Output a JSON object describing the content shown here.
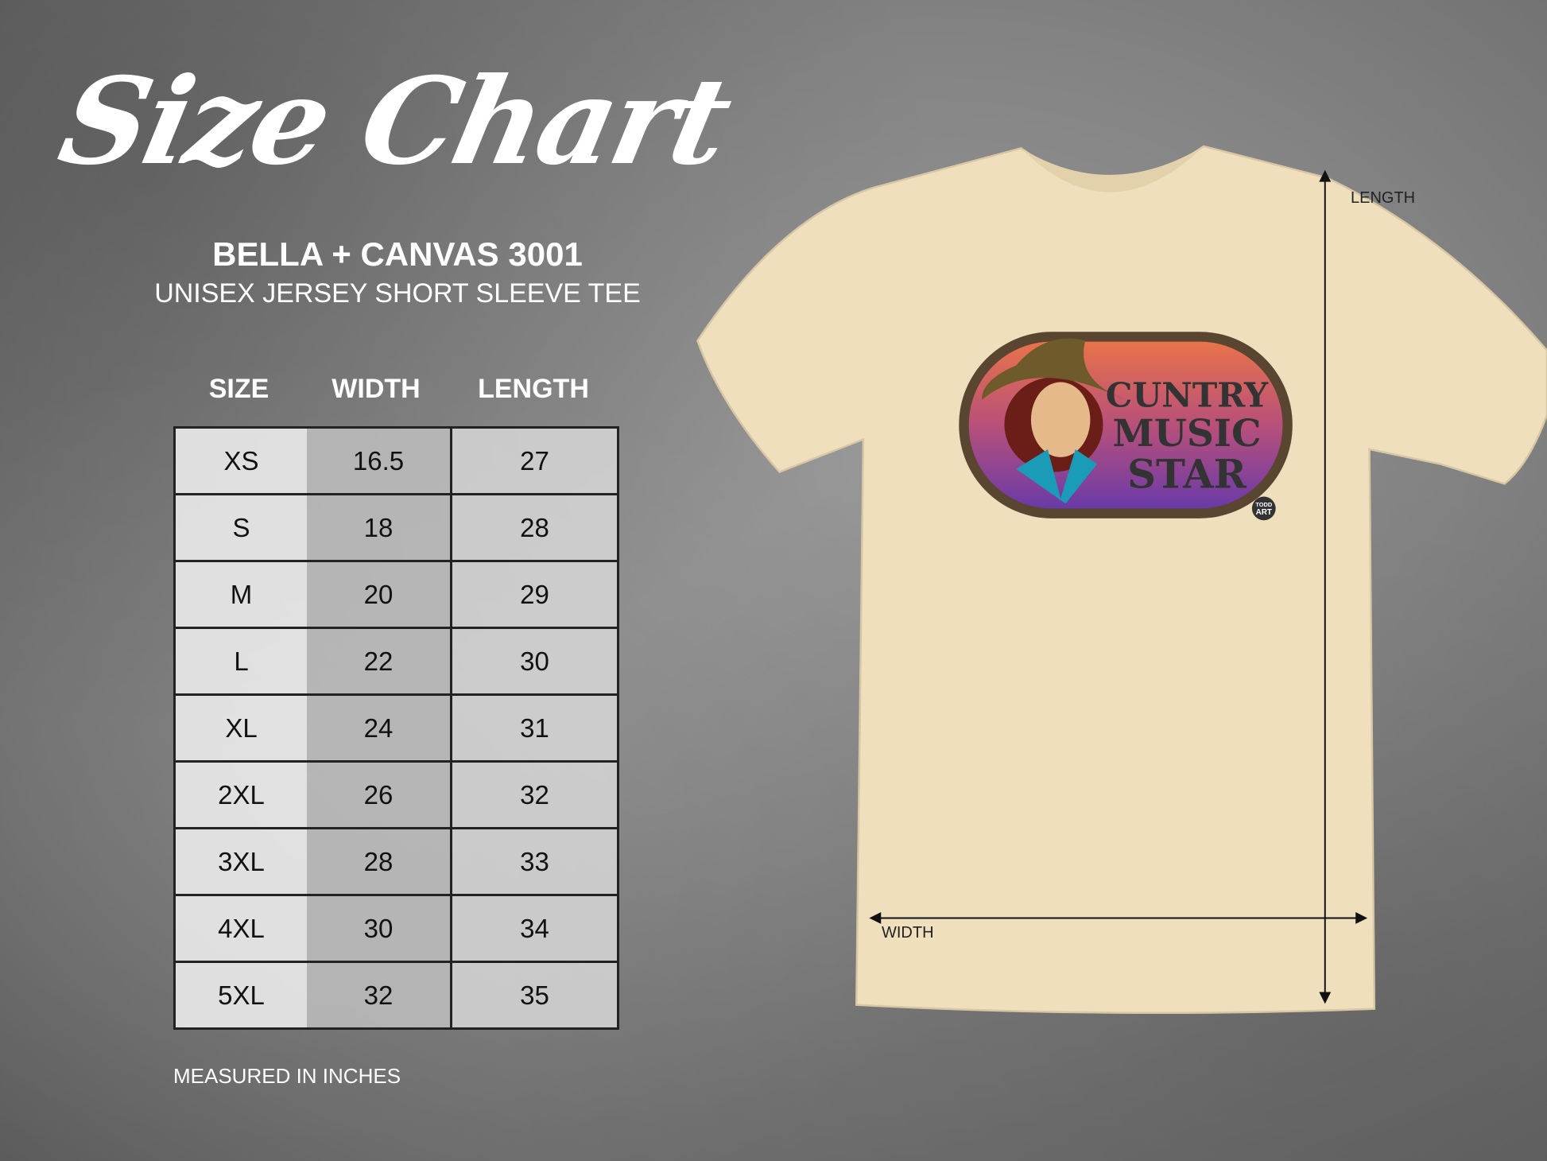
{
  "title": "Size Chart",
  "brand": "BELLA + CANVAS 3001",
  "subtitle": "UNISEX JERSEY SHORT SLEEVE TEE",
  "table": {
    "headers": [
      "SIZE",
      "WIDTH",
      "LENGTH"
    ],
    "rows": [
      [
        "XS",
        "16.5",
        "27"
      ],
      [
        "S",
        "18",
        "28"
      ],
      [
        "M",
        "20",
        "29"
      ],
      [
        "L",
        "22",
        "30"
      ],
      [
        "XL",
        "24",
        "31"
      ],
      [
        "2XL",
        "26",
        "32"
      ],
      [
        "3XL",
        "28",
        "33"
      ],
      [
        "4XL",
        "30",
        "34"
      ],
      [
        "5XL",
        "32",
        "35"
      ]
    ]
  },
  "note": "MEASURED IN INCHES",
  "shirt": {
    "color": "#efdfbd",
    "length_label": "LENGTH",
    "width_label": "WIDTH",
    "graphic": {
      "lines": [
        "CUNTRY",
        "MUSIC",
        "STAR"
      ],
      "badge": [
        "TODD",
        "ART"
      ]
    }
  }
}
